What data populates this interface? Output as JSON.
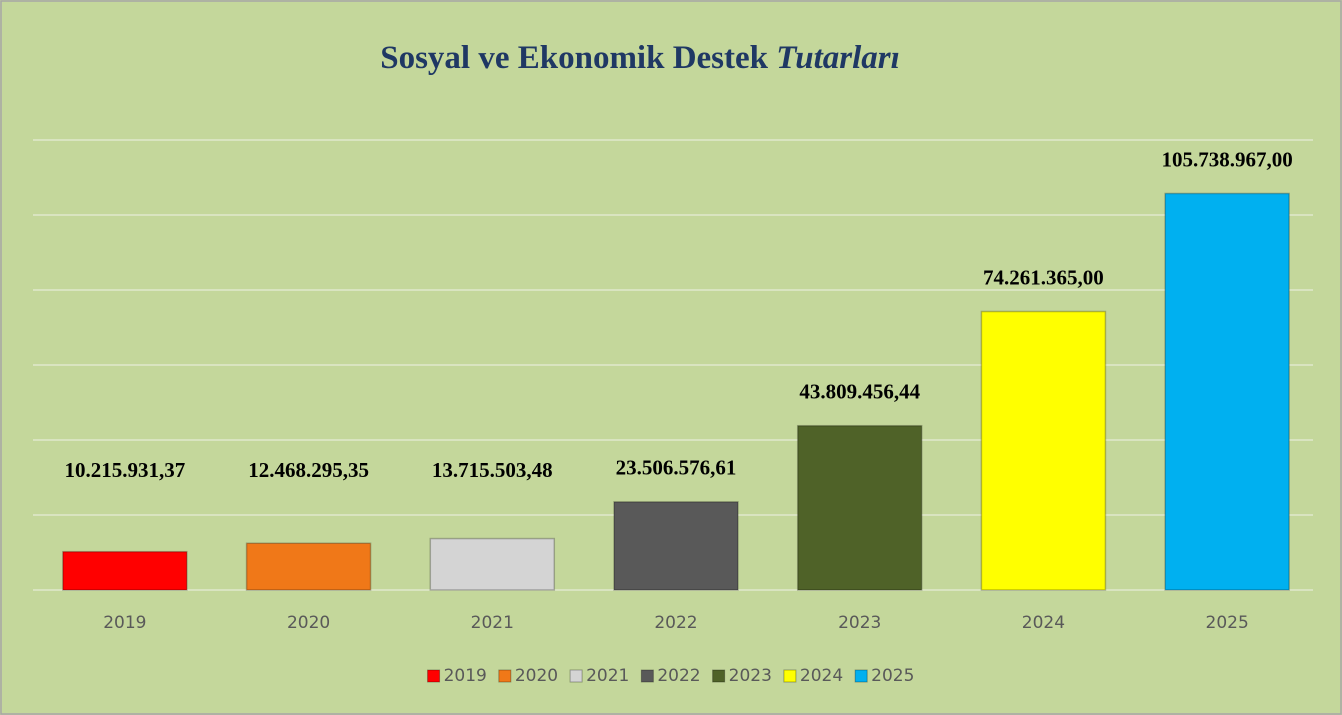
{
  "chart_data": {
    "type": "bar",
    "title": [
      "Sosyal ve Ekonomik Destek",
      "Tutarları"
    ],
    "categories": [
      "2019",
      "2020",
      "2021",
      "2022",
      "2023",
      "2024",
      "2025"
    ],
    "values": [
      10215931.37,
      12468295.35,
      13715503.48,
      23506576.61,
      43809456.44,
      74261365.0,
      105738967.0
    ],
    "value_labels": [
      "10.215.931,37",
      "12.468.295,35",
      "13.715.503,48",
      "23.506.576,61",
      "43.809.456,44",
      "74.261.365,00",
      "105.738.967,00"
    ],
    "colors": [
      "#ff0000",
      "#f07818",
      "#d4d4d4",
      "#595959",
      "#4f6228",
      "#ffff00",
      "#00b0f0"
    ],
    "ylim": [
      0,
      120000000
    ],
    "yticks": [
      0,
      20000000,
      40000000,
      60000000,
      80000000,
      100000000,
      120000000
    ],
    "grid": true,
    "legend": "bottom"
  }
}
